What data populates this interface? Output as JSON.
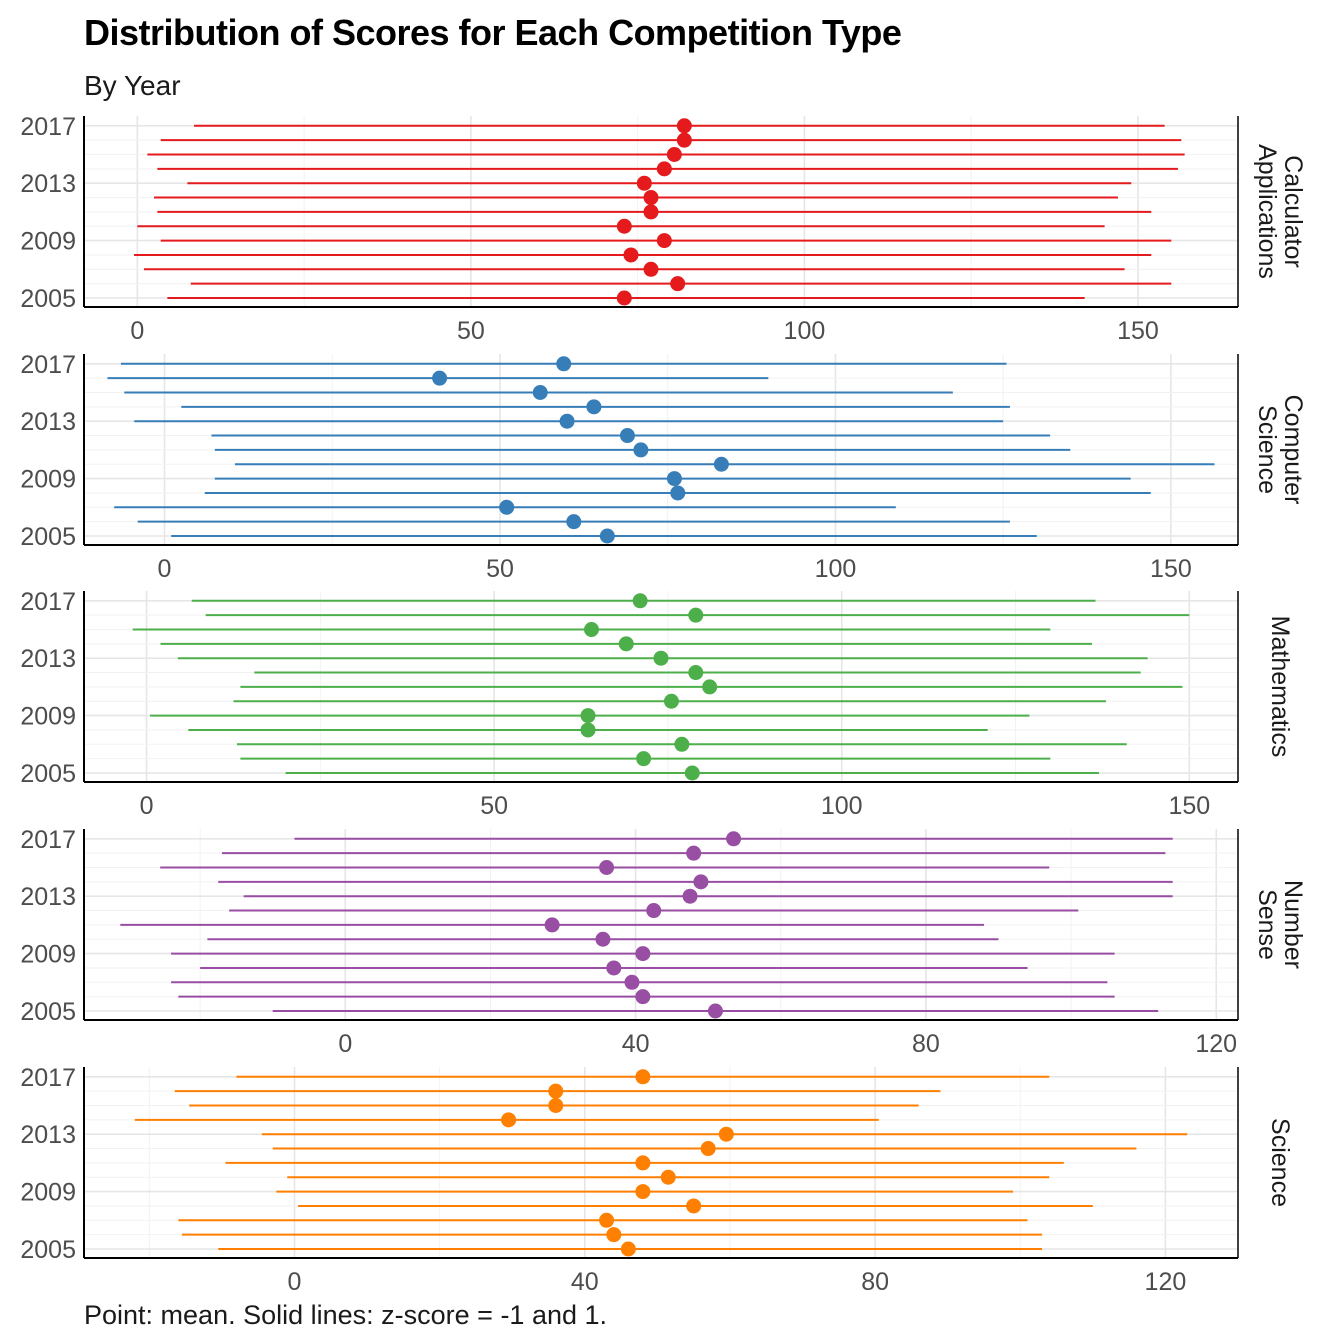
{
  "title": "Distribution of Scores for Each Competition Type",
  "subtitle": "By Year",
  "caption": "Point: mean. Solid lines: z-score = -1 and 1.",
  "y_tick_labels": [
    "2017",
    "2013",
    "2009",
    "2005"
  ],
  "chart_data": [
    {
      "type": "scatter",
      "facet": "Calculator Applications",
      "facet_label_lines": [
        "Calculator",
        "Applications"
      ],
      "color": "#E41A1C",
      "x_ticks": [
        0,
        50,
        100,
        150
      ],
      "xlim": [
        -8,
        165
      ],
      "years": [
        2005,
        2006,
        2007,
        2008,
        2009,
        2010,
        2011,
        2012,
        2013,
        2014,
        2015,
        2016,
        2017
      ],
      "mean": [
        73,
        81,
        77,
        74,
        79,
        73,
        77,
        77,
        76,
        79,
        80.5,
        82,
        82
      ],
      "z_low": [
        4.5,
        8,
        1,
        -0.5,
        3.5,
        0,
        3,
        2.5,
        7.5,
        3,
        1.5,
        3.5,
        8.5
      ],
      "z_high": [
        142,
        155,
        148,
        152,
        155,
        145,
        152,
        147,
        149,
        156,
        157,
        156.5,
        154
      ]
    },
    {
      "type": "scatter",
      "facet": "Computer Science",
      "facet_label_lines": [
        "Computer",
        "Science"
      ],
      "color": "#377EB8",
      "x_ticks": [
        0,
        50,
        100,
        150
      ],
      "xlim": [
        -12,
        160
      ],
      "years": [
        2005,
        2006,
        2007,
        2008,
        2009,
        2010,
        2011,
        2012,
        2013,
        2014,
        2015,
        2016,
        2017
      ],
      "mean": [
        66,
        61,
        51,
        76.5,
        76,
        83,
        71,
        69,
        60,
        64,
        56,
        41,
        59.5
      ],
      "z_low": [
        1,
        -4,
        -7.5,
        6,
        7.5,
        10.5,
        7.5,
        7,
        -4.5,
        2.5,
        -6,
        -8.5,
        -6.5
      ],
      "z_high": [
        130,
        126,
        109,
        147,
        144,
        156.5,
        135,
        132,
        125,
        126,
        117.5,
        90,
        125.5
      ]
    },
    {
      "type": "scatter",
      "facet": "Mathematics",
      "facet_label_lines": [
        "Mathematics"
      ],
      "color": "#4DAF4A",
      "x_ticks": [
        0,
        50,
        100,
        150
      ],
      "xlim": [
        -9,
        157
      ],
      "years": [
        2005,
        2006,
        2007,
        2008,
        2009,
        2010,
        2011,
        2012,
        2013,
        2014,
        2015,
        2016,
        2017
      ],
      "mean": [
        78.5,
        71.5,
        77,
        63.5,
        63.5,
        75.5,
        81,
        79,
        74,
        69,
        64,
        79,
        71
      ],
      "z_low": [
        20,
        13.5,
        13,
        6,
        0.5,
        12.5,
        13.5,
        15.5,
        4.5,
        2,
        -2,
        8.5,
        6.5
      ],
      "z_high": [
        137,
        130,
        141,
        121,
        127,
        138,
        149,
        143,
        144,
        136,
        130,
        150,
        136.5
      ]
    },
    {
      "type": "scatter",
      "facet": "Number Sense",
      "facet_label_lines": [
        "Number",
        "Sense"
      ],
      "color": "#984EA3",
      "x_ticks": [
        0,
        40,
        80,
        120
      ],
      "xlim": [
        -36,
        123
      ],
      "years": [
        2005,
        2006,
        2007,
        2008,
        2009,
        2010,
        2011,
        2012,
        2013,
        2014,
        2015,
        2016,
        2017
      ],
      "mean": [
        51,
        41,
        39.5,
        37,
        41,
        35.5,
        28.5,
        42.5,
        47.5,
        49,
        36,
        48,
        53.5
      ],
      "z_low": [
        -10,
        -23,
        -24,
        -20,
        -24,
        -19,
        -31,
        -16,
        -14,
        -17.5,
        -25.5,
        -17,
        -7
      ],
      "z_high": [
        112,
        106,
        105,
        94,
        106,
        90,
        88,
        101,
        114,
        114,
        97,
        113,
        114
      ]
    },
    {
      "type": "scatter",
      "facet": "Science",
      "facet_label_lines": [
        "Science"
      ],
      "color": "#FF7F00",
      "x_ticks": [
        0,
        40,
        80,
        120
      ],
      "xlim": [
        -29,
        130
      ],
      "years": [
        2005,
        2006,
        2007,
        2008,
        2009,
        2010,
        2011,
        2012,
        2013,
        2014,
        2015,
        2016,
        2017
      ],
      "mean": [
        46,
        44,
        43,
        55,
        48,
        51.5,
        48,
        57,
        59.5,
        29.5,
        36,
        36,
        48
      ],
      "z_low": [
        -10.5,
        -15.5,
        -16,
        0.5,
        -2.5,
        -1,
        -9.5,
        -3,
        -4.5,
        -22,
        -14.5,
        -16.5,
        -8
      ],
      "z_high": [
        103,
        103,
        101,
        110,
        99,
        104,
        106,
        116,
        123,
        80.5,
        86,
        89,
        104
      ]
    }
  ]
}
